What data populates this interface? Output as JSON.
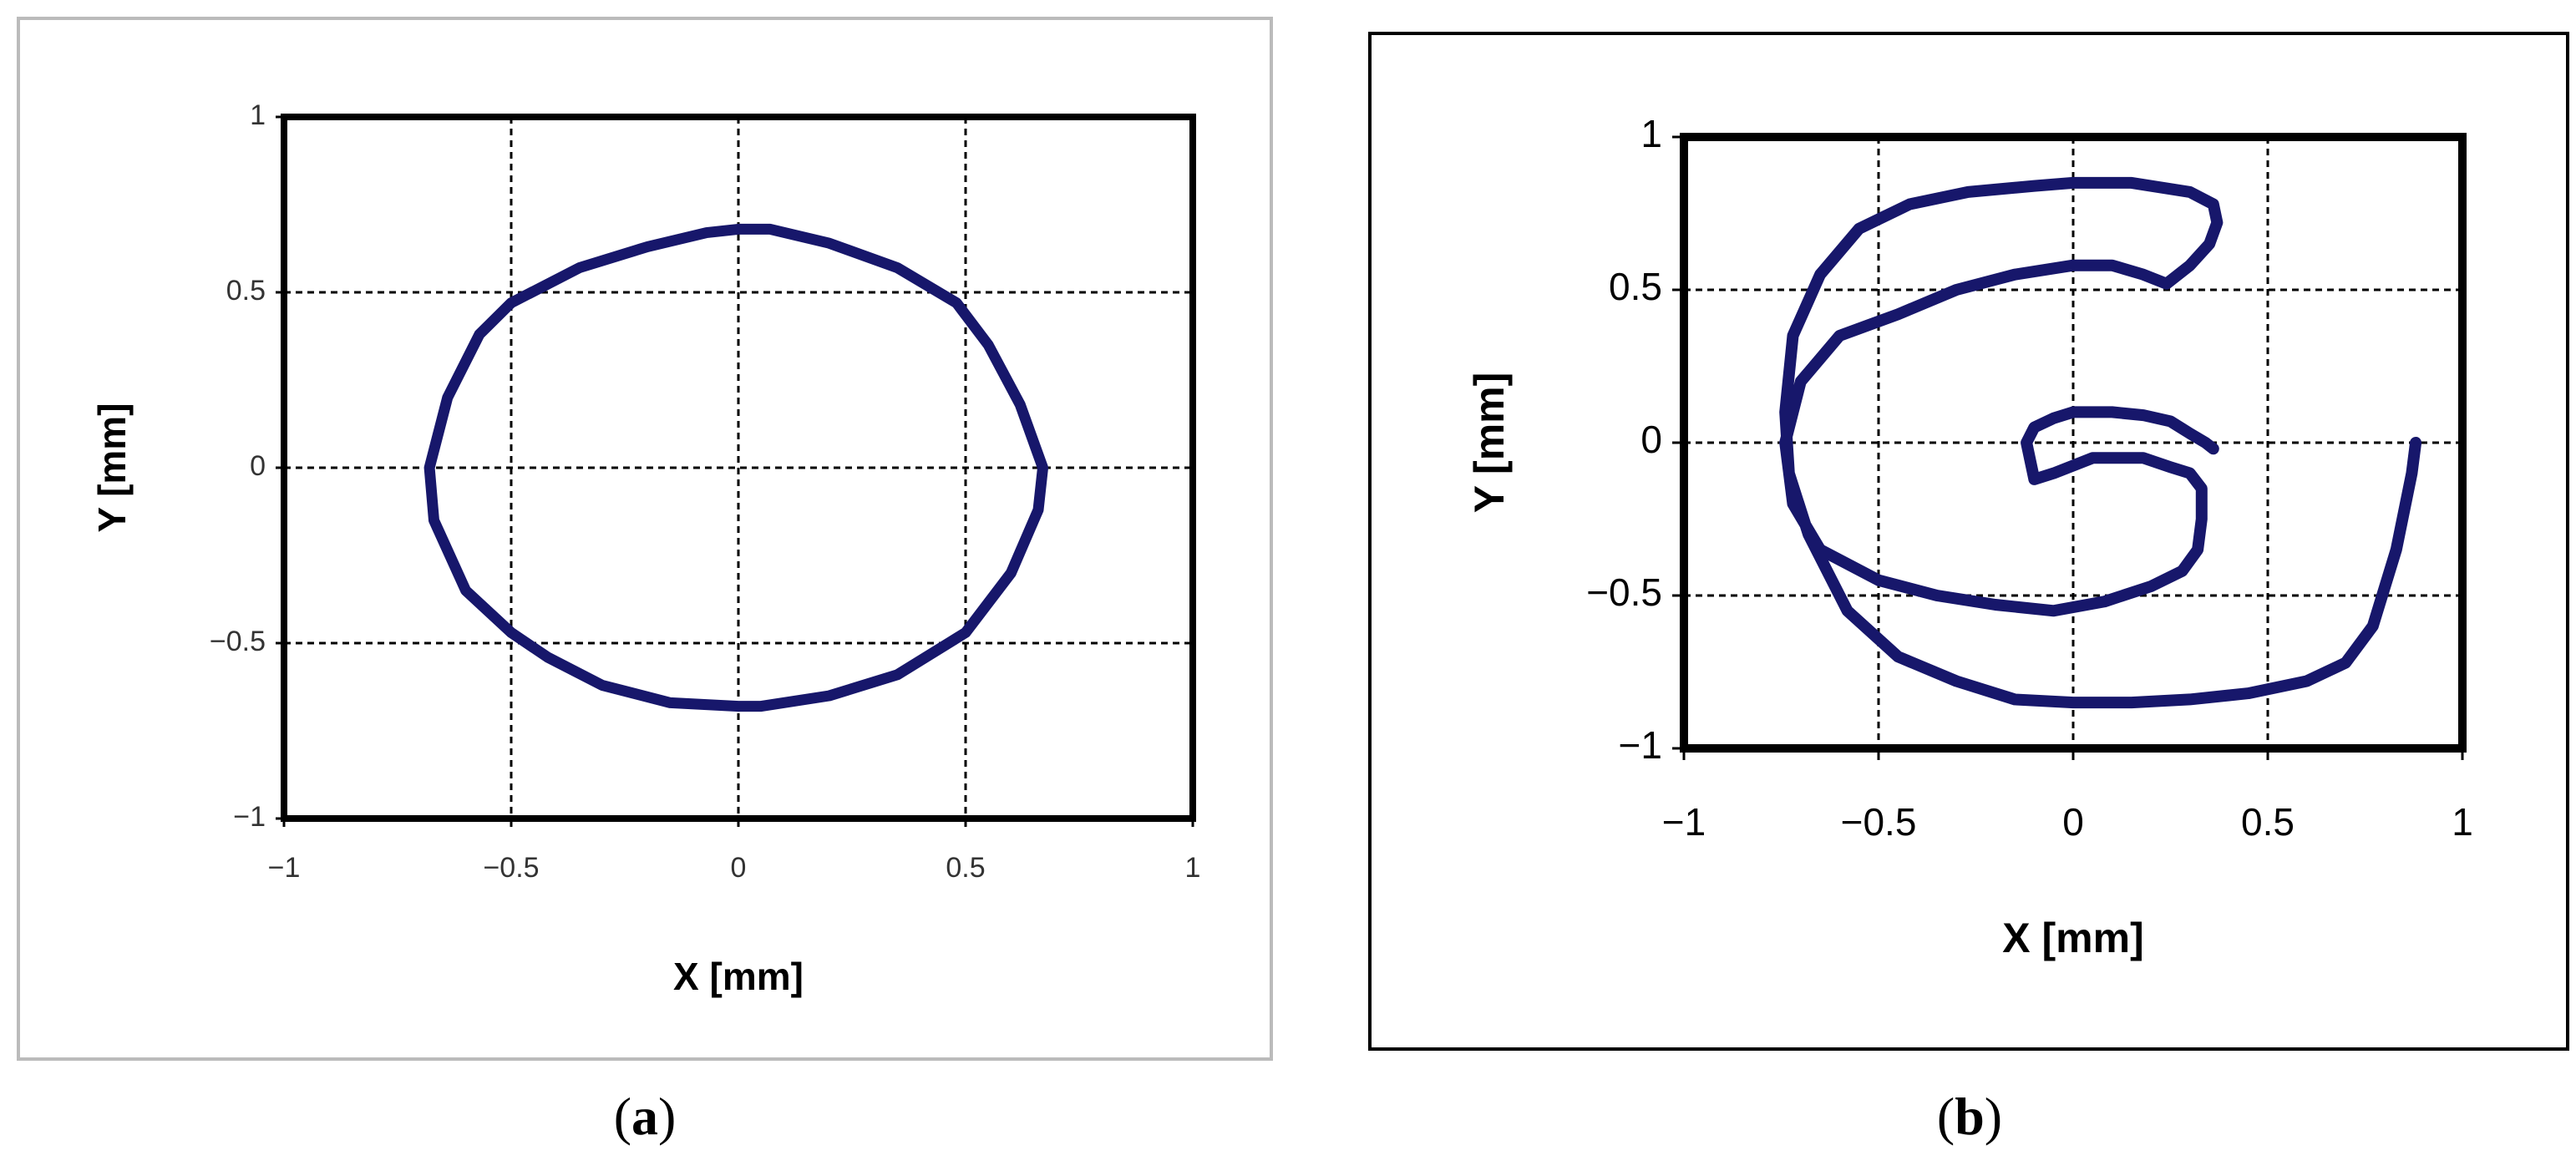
{
  "captions": [
    {
      "open": "(",
      "letter": "a",
      "close": ")"
    },
    {
      "open": "(",
      "letter": "b",
      "close": ")"
    }
  ],
  "style": {
    "line_color": "#17176b",
    "frame_color": "#000000",
    "grid_color": "#000000"
  },
  "chart_data": [
    {
      "type": "line",
      "xlabel": "X [mm]",
      "ylabel": "Y [mm]",
      "xlim": [
        -1,
        1
      ],
      "ylim": [
        -1,
        1
      ],
      "xticks": [
        "−1",
        "−0.5",
        "0",
        "0.5",
        "1"
      ],
      "yticks": [
        "1",
        "0.5",
        "0",
        "−0.5",
        "−1"
      ],
      "grid": true,
      "series": [
        {
          "x": [
            0.0,
            0.07,
            0.2,
            0.35,
            0.48,
            0.55,
            0.62,
            0.67,
            0.66,
            0.6,
            0.5,
            0.35,
            0.2,
            0.05,
            0.0,
            -0.15,
            -0.3,
            -0.42,
            -0.5,
            -0.6,
            -0.67,
            -0.68,
            -0.64,
            -0.57,
            -0.5,
            -0.35,
            -0.2,
            -0.07,
            0.0
          ],
          "y": [
            0.68,
            0.68,
            0.64,
            0.57,
            0.47,
            0.35,
            0.18,
            0.0,
            -0.12,
            -0.3,
            -0.47,
            -0.59,
            -0.65,
            -0.68,
            -0.68,
            -0.67,
            -0.62,
            -0.54,
            -0.47,
            -0.35,
            -0.15,
            0.0,
            0.2,
            0.38,
            0.47,
            0.57,
            0.63,
            0.67,
            0.68
          ]
        }
      ]
    },
    {
      "type": "line",
      "xlabel": "X [mm]",
      "ylabel": "Y [mm]",
      "xlim": [
        -1,
        1
      ],
      "ylim": [
        -1,
        1
      ],
      "xticks": [
        "−1",
        "−0.5",
        "0",
        "0.5",
        "1"
      ],
      "yticks": [
        "1",
        "0.5",
        "0",
        "−0.5",
        "−1"
      ],
      "grid": true,
      "series": [
        {
          "x": [
            0.88,
            0.87,
            0.83,
            0.77,
            0.7,
            0.6,
            0.45,
            0.3,
            0.15,
            0.0,
            -0.15,
            -0.3,
            -0.45,
            -0.58,
            -0.68,
            -0.73,
            -0.74,
            -0.72,
            -0.65,
            -0.55,
            -0.42,
            -0.27,
            -0.1,
            0.0,
            0.15,
            0.3,
            0.36,
            0.37,
            0.35,
            0.3,
            0.24,
            0.18,
            0.1,
            0.0,
            -0.15,
            -0.3,
            -0.45,
            -0.6,
            -0.7,
            -0.74,
            -0.72,
            -0.65,
            -0.5,
            -0.35,
            -0.2,
            -0.05,
            0.08,
            0.2,
            0.28,
            0.32,
            0.33,
            0.33,
            0.3,
            0.25,
            0.18,
            0.1,
            0.05,
            -0.05,
            -0.1,
            -0.12,
            -0.1,
            -0.05,
            0.0,
            0.1,
            0.18,
            0.25,
            0.3,
            0.34,
            0.36
          ],
          "y": [
            0.0,
            -0.1,
            -0.35,
            -0.6,
            -0.72,
            -0.78,
            -0.82,
            -0.84,
            -0.85,
            -0.85,
            -0.84,
            -0.78,
            -0.7,
            -0.55,
            -0.3,
            -0.1,
            0.1,
            0.35,
            0.55,
            0.7,
            0.78,
            0.82,
            0.84,
            0.85,
            0.85,
            0.82,
            0.78,
            0.72,
            0.65,
            0.58,
            0.52,
            0.55,
            0.58,
            0.58,
            0.55,
            0.5,
            0.42,
            0.35,
            0.2,
            0.0,
            -0.2,
            -0.35,
            -0.45,
            -0.5,
            -0.53,
            -0.55,
            -0.52,
            -0.47,
            -0.42,
            -0.35,
            -0.25,
            -0.15,
            -0.1,
            -0.08,
            -0.05,
            -0.05,
            -0.05,
            -0.1,
            -0.12,
            -0.0,
            0.05,
            0.08,
            0.1,
            0.1,
            0.09,
            0.07,
            0.03,
            0.0,
            -0.02
          ]
        }
      ]
    }
  ]
}
